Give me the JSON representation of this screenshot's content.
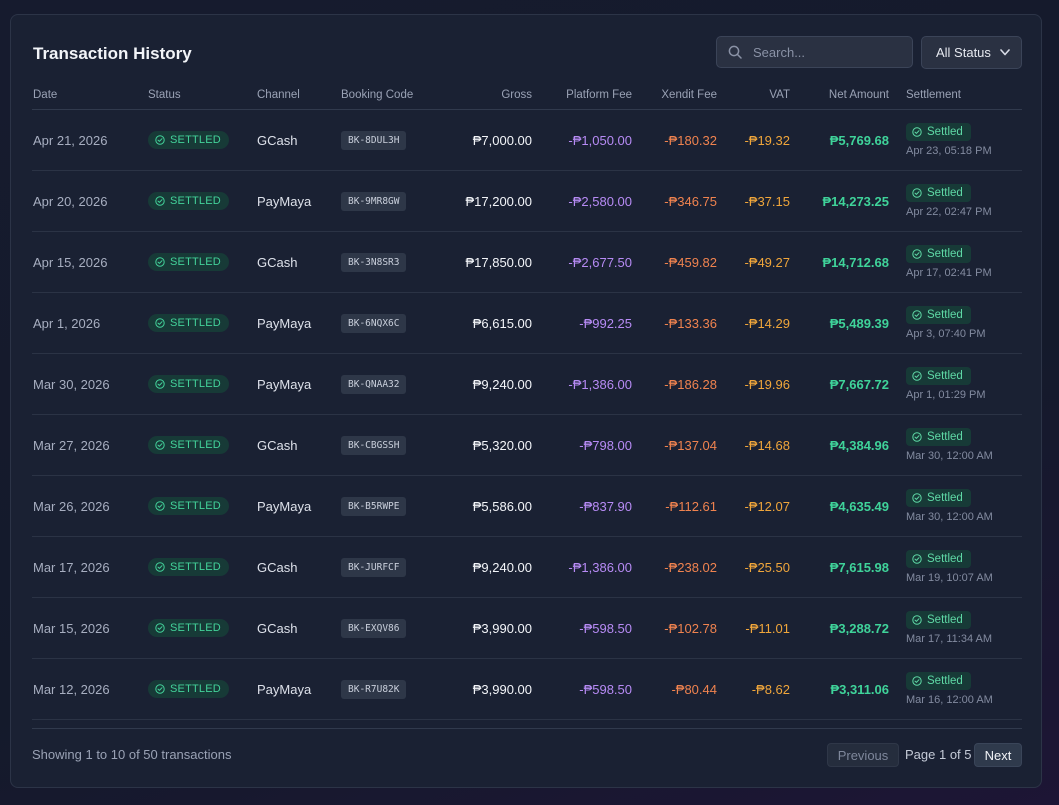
{
  "header": {
    "title": "Transaction History",
    "search_placeholder": "Search...",
    "status_filter": "All Status"
  },
  "columns": [
    "Date",
    "Status",
    "Channel",
    "Booking Code",
    "Gross",
    "Platform Fee",
    "Xendit Fee",
    "VAT",
    "Net Amount",
    "Settlement"
  ],
  "rows": [
    {
      "date": "Apr 21, 2026",
      "status": "SETTLED",
      "channel": "GCash",
      "code": "BK-8DUL3H",
      "gross": "₱7,000.00",
      "platform_fee": "-₱1,050.00",
      "xendit_fee": "-₱180.32",
      "vat": "-₱19.32",
      "net": "₱5,769.68",
      "settlement_status": "Settled",
      "settlement_time": "Apr 23, 05:18 PM"
    },
    {
      "date": "Apr 20, 2026",
      "status": "SETTLED",
      "channel": "PayMaya",
      "code": "BK-9MR8GW",
      "gross": "₱17,200.00",
      "platform_fee": "-₱2,580.00",
      "xendit_fee": "-₱346.75",
      "vat": "-₱37.15",
      "net": "₱14,273.25",
      "settlement_status": "Settled",
      "settlement_time": "Apr 22, 02:47 PM"
    },
    {
      "date": "Apr 15, 2026",
      "status": "SETTLED",
      "channel": "GCash",
      "code": "BK-3N8SR3",
      "gross": "₱17,850.00",
      "platform_fee": "-₱2,677.50",
      "xendit_fee": "-₱459.82",
      "vat": "-₱49.27",
      "net": "₱14,712.68",
      "settlement_status": "Settled",
      "settlement_time": "Apr 17, 02:41 PM"
    },
    {
      "date": "Apr 1, 2026",
      "status": "SETTLED",
      "channel": "PayMaya",
      "code": "BK-6NQX6C",
      "gross": "₱6,615.00",
      "platform_fee": "-₱992.25",
      "xendit_fee": "-₱133.36",
      "vat": "-₱14.29",
      "net": "₱5,489.39",
      "settlement_status": "Settled",
      "settlement_time": "Apr 3, 07:40 PM"
    },
    {
      "date": "Mar 30, 2026",
      "status": "SETTLED",
      "channel": "PayMaya",
      "code": "BK-QNAA32",
      "gross": "₱9,240.00",
      "platform_fee": "-₱1,386.00",
      "xendit_fee": "-₱186.28",
      "vat": "-₱19.96",
      "net": "₱7,667.72",
      "settlement_status": "Settled",
      "settlement_time": "Apr 1, 01:29 PM"
    },
    {
      "date": "Mar 27, 2026",
      "status": "SETTLED",
      "channel": "GCash",
      "code": "BK-CBGSSH",
      "gross": "₱5,320.00",
      "platform_fee": "-₱798.00",
      "xendit_fee": "-₱137.04",
      "vat": "-₱14.68",
      "net": "₱4,384.96",
      "settlement_status": "Settled",
      "settlement_time": "Mar 30, 12:00 AM"
    },
    {
      "date": "Mar 26, 2026",
      "status": "SETTLED",
      "channel": "PayMaya",
      "code": "BK-B5RWPE",
      "gross": "₱5,586.00",
      "platform_fee": "-₱837.90",
      "xendit_fee": "-₱112.61",
      "vat": "-₱12.07",
      "net": "₱4,635.49",
      "settlement_status": "Settled",
      "settlement_time": "Mar 30, 12:00 AM"
    },
    {
      "date": "Mar 17, 2026",
      "status": "SETTLED",
      "channel": "GCash",
      "code": "BK-JURFCF",
      "gross": "₱9,240.00",
      "platform_fee": "-₱1,386.00",
      "xendit_fee": "-₱238.02",
      "vat": "-₱25.50",
      "net": "₱7,615.98",
      "settlement_status": "Settled",
      "settlement_time": "Mar 19, 10:07 AM"
    },
    {
      "date": "Mar 15, 2026",
      "status": "SETTLED",
      "channel": "GCash",
      "code": "BK-EXQV86",
      "gross": "₱3,990.00",
      "platform_fee": "-₱598.50",
      "xendit_fee": "-₱102.78",
      "vat": "-₱11.01",
      "net": "₱3,288.72",
      "settlement_status": "Settled",
      "settlement_time": "Mar 17, 11:34 AM"
    },
    {
      "date": "Mar 12, 2026",
      "status": "SETTLED",
      "channel": "PayMaya",
      "code": "BK-R7U82K",
      "gross": "₱3,990.00",
      "platform_fee": "-₱598.50",
      "xendit_fee": "-₱80.44",
      "vat": "-₱8.62",
      "net": "₱3,311.06",
      "settlement_status": "Settled",
      "settlement_time": "Mar 16, 12:00 AM"
    }
  ],
  "footer": {
    "showing": "Showing 1 to 10 of 50 transactions",
    "previous": "Previous",
    "page_info": "Page 1 of 5",
    "next": "Next"
  },
  "colors": {
    "status_green": "#43d29a",
    "platform_fee": "#b78bf5",
    "xendit_fee": "#f0834f",
    "vat": "#f0a63b",
    "net": "#3fd39a"
  },
  "icons": {
    "search": "search-icon",
    "dropdown": "chevron-down-icon",
    "status": "check-circle-icon"
  }
}
